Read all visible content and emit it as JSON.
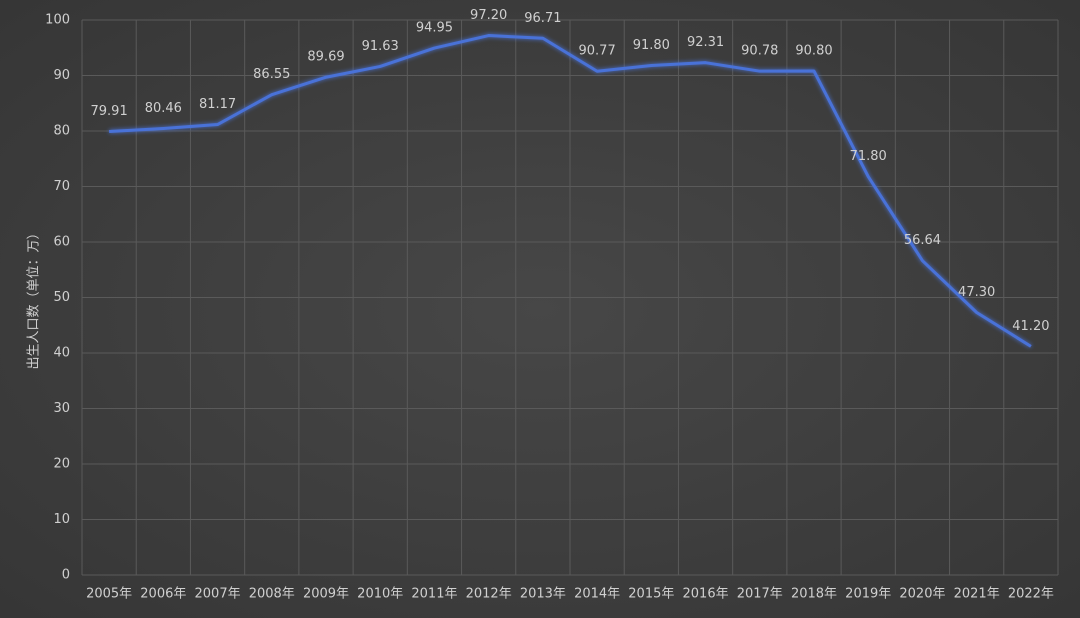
{
  "chart_data": {
    "type": "line",
    "y_label": "出生人口数（单位：万）",
    "categories": [
      "2005年",
      "2006年",
      "2007年",
      "2008年",
      "2009年",
      "2010年",
      "2011年",
      "2012年",
      "2013年",
      "2014年",
      "2015年",
      "2016年",
      "2017年",
      "2018年",
      "2019年",
      "2020年",
      "2021年",
      "2022年"
    ],
    "values": [
      79.91,
      80.46,
      81.17,
      86.55,
      89.69,
      91.63,
      94.95,
      97.2,
      96.71,
      90.77,
      91.8,
      92.31,
      90.78,
      90.8,
      71.8,
      56.64,
      47.3,
      41.2
    ],
    "value_labels": [
      "79.91",
      "80.46",
      "81.17",
      "86.55",
      "89.69",
      "91.63",
      "94.95",
      "97.20",
      "96.71",
      "90.77",
      "91.80",
      "92.31",
      "90.78",
      "90.80",
      "71.80",
      "56.64",
      "47.30",
      "41.20"
    ],
    "color": "#4a72d8",
    "ylim": [
      0,
      100
    ],
    "yticks": [
      0,
      10,
      20,
      30,
      40,
      50,
      60,
      70,
      80,
      90,
      100
    ],
    "grid": true
  }
}
